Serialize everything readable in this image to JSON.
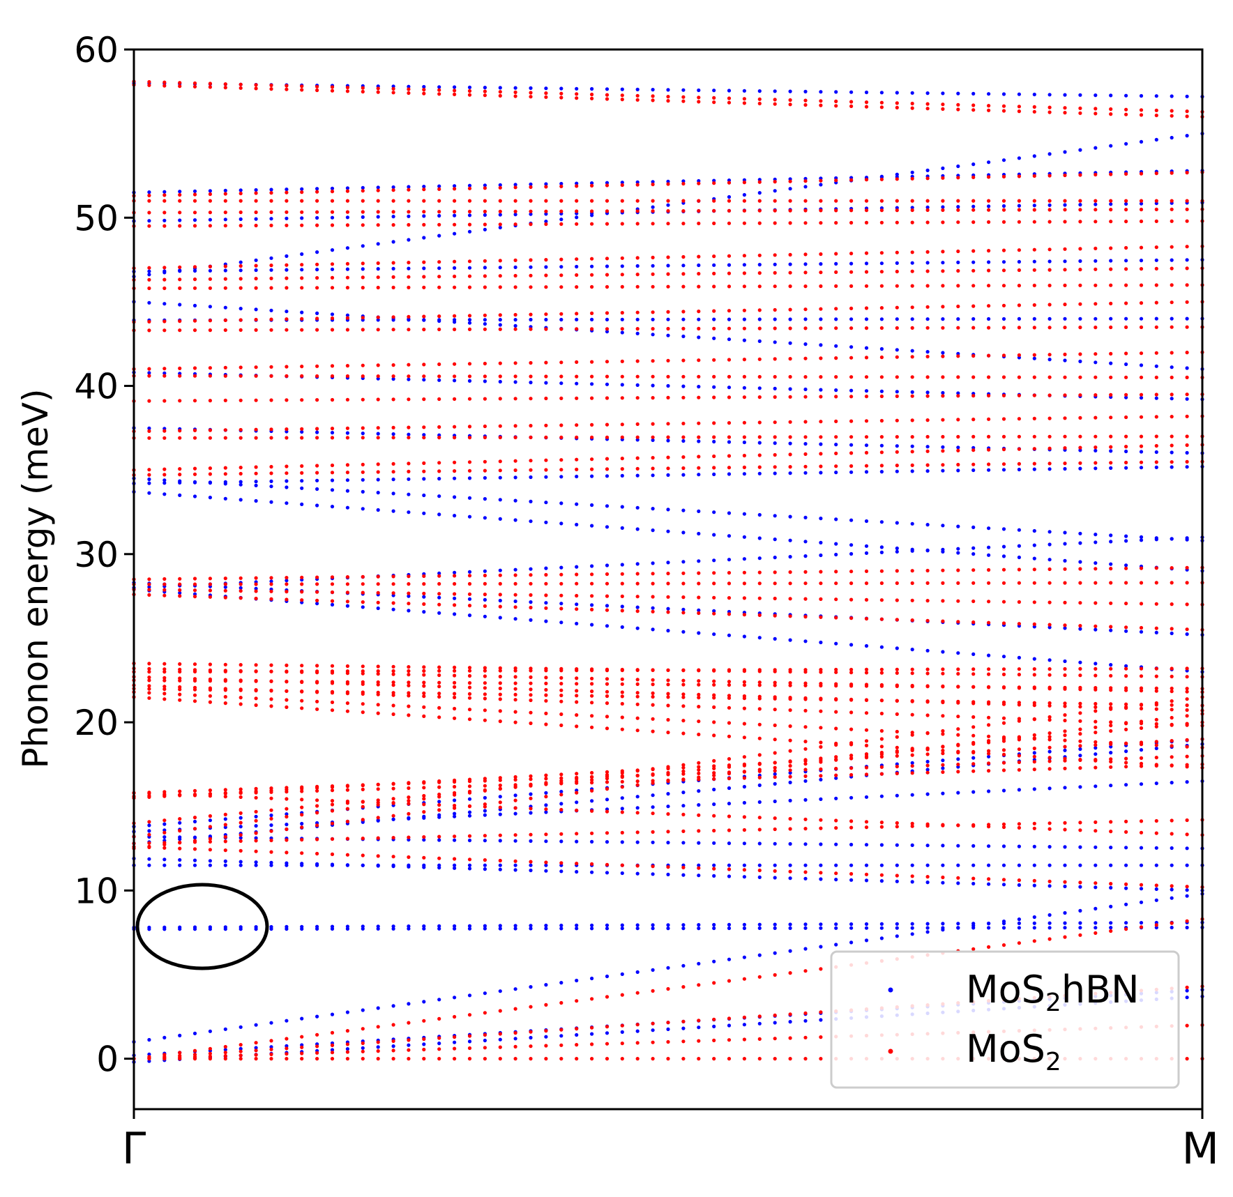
{
  "chart_data": {
    "type": "scatter",
    "ylabel": "Phonon energy (meV)",
    "ylim": [
      -3,
      60
    ],
    "yticks": [
      0,
      10,
      20,
      30,
      40,
      50,
      60
    ],
    "xticks": [
      "Γ",
      "M"
    ],
    "grid": false,
    "legend_placement": "lower-right",
    "series": [
      {
        "name": "MoS2hBN",
        "name_base": "MoS",
        "name_sub": "2",
        "name_suffix": "hBN",
        "color": "#0000ff"
      },
      {
        "name": "MoS2",
        "name_base": "MoS",
        "name_sub": "2",
        "name_suffix": "",
        "color": "#ff0000"
      }
    ],
    "bands": {
      "MoS2": [
        [
          0,
          0
        ],
        [
          0,
          2
        ],
        [
          0,
          4.3
        ],
        [
          0,
          8.3
        ],
        [
          12.6,
          10.2
        ],
        [
          12.8,
          14.2
        ],
        [
          15.8,
          13.3
        ],
        [
          15.6,
          17.5
        ],
        [
          15.8,
          18.0
        ],
        [
          15.5,
          19.0
        ],
        [
          14.0,
          20.0
        ],
        [
          13.2,
          21.5
        ],
        [
          12.5,
          20.5
        ],
        [
          21.5,
          17.3
        ],
        [
          21.8,
          18.5
        ],
        [
          22.2,
          19.8
        ],
        [
          22.7,
          20.7
        ],
        [
          23.2,
          21.8
        ],
        [
          23.5,
          22.7
        ],
        [
          23.0,
          23.2
        ],
        [
          22.5,
          22.0
        ],
        [
          22.0,
          21.0
        ],
        [
          27.6,
          25.5
        ],
        [
          27.9,
          27.0
        ],
        [
          28.2,
          28.3
        ],
        [
          28.5,
          29.2
        ],
        [
          34.7,
          35.5
        ],
        [
          35.0,
          36.5
        ],
        [
          36.9,
          37.0
        ],
        [
          37.3,
          38.2
        ],
        [
          39.1,
          39.5
        ],
        [
          40.6,
          40.5
        ],
        [
          41.0,
          42.0
        ],
        [
          43.3,
          43.5
        ],
        [
          43.8,
          45.0
        ],
        [
          45.8,
          46.0
        ],
        [
          46.3,
          47.0
        ],
        [
          47.0,
          48.3
        ],
        [
          49.5,
          49.8
        ],
        [
          50.3,
          50.5
        ],
        [
          51.0,
          51.0
        ],
        [
          51.3,
          52.7
        ],
        [
          57.9,
          56.0
        ],
        [
          58.1,
          56.3
        ]
      ],
      "MoS2hBN": [
        [
          -0.2,
          3.7
        ],
        [
          0.2,
          4.1
        ],
        [
          1.0,
          9.8
        ],
        [
          7.7,
          7.8
        ],
        [
          7.8,
          8.1
        ],
        [
          11.5,
          11.5
        ],
        [
          11.9,
          10.0
        ],
        [
          13.2,
          12.5
        ],
        [
          13.5,
          16.5
        ],
        [
          13.8,
          19.0
        ],
        [
          12.8,
          18.7
        ],
        [
          28.0,
          31.0
        ],
        [
          28.3,
          25.2
        ],
        [
          27.9,
          23.0
        ],
        [
          34.2,
          35.2
        ],
        [
          34.5,
          30.8
        ],
        [
          33.7,
          29.0
        ],
        [
          37.5,
          36.0
        ],
        [
          40.8,
          39.2
        ],
        [
          43.9,
          44.0
        ],
        [
          46.8,
          47.5
        ],
        [
          49.8,
          50.9
        ],
        [
          51.5,
          52.8
        ],
        [
          58.0,
          57.2
        ],
        [
          46.5,
          55.0
        ],
        [
          45.0,
          41.0
        ]
      ]
    }
  }
}
